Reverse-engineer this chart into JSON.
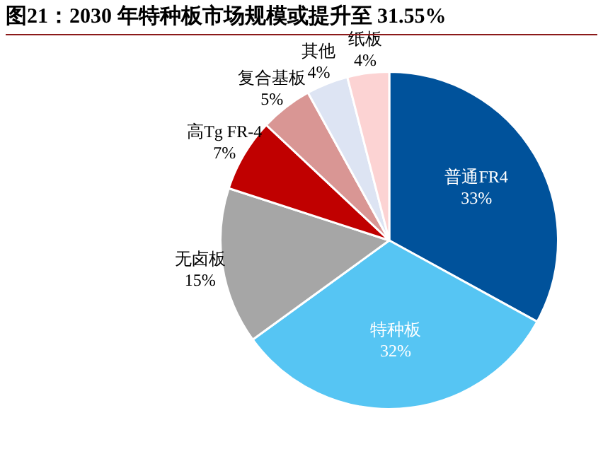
{
  "chart_data": {
    "type": "pie",
    "title": "图21：2030 年特种板市场规模或提升至 31.55%",
    "categories": [
      "普通FR4",
      "特种板",
      "无卤板",
      "高Tg FR-4",
      "复合基板",
      "其他",
      "纸板"
    ],
    "values": [
      33,
      32,
      15,
      7,
      5,
      4,
      4
    ],
    "value_labels": [
      "33%",
      "32%",
      "15%",
      "7%",
      "5%",
      "4%",
      "4%"
    ],
    "colors": [
      "#00529b",
      "#56c5f3",
      "#a6a6a6",
      "#c00000",
      "#d99694",
      "#dde4f3",
      "#fcd3d3"
    ],
    "legend": false
  }
}
